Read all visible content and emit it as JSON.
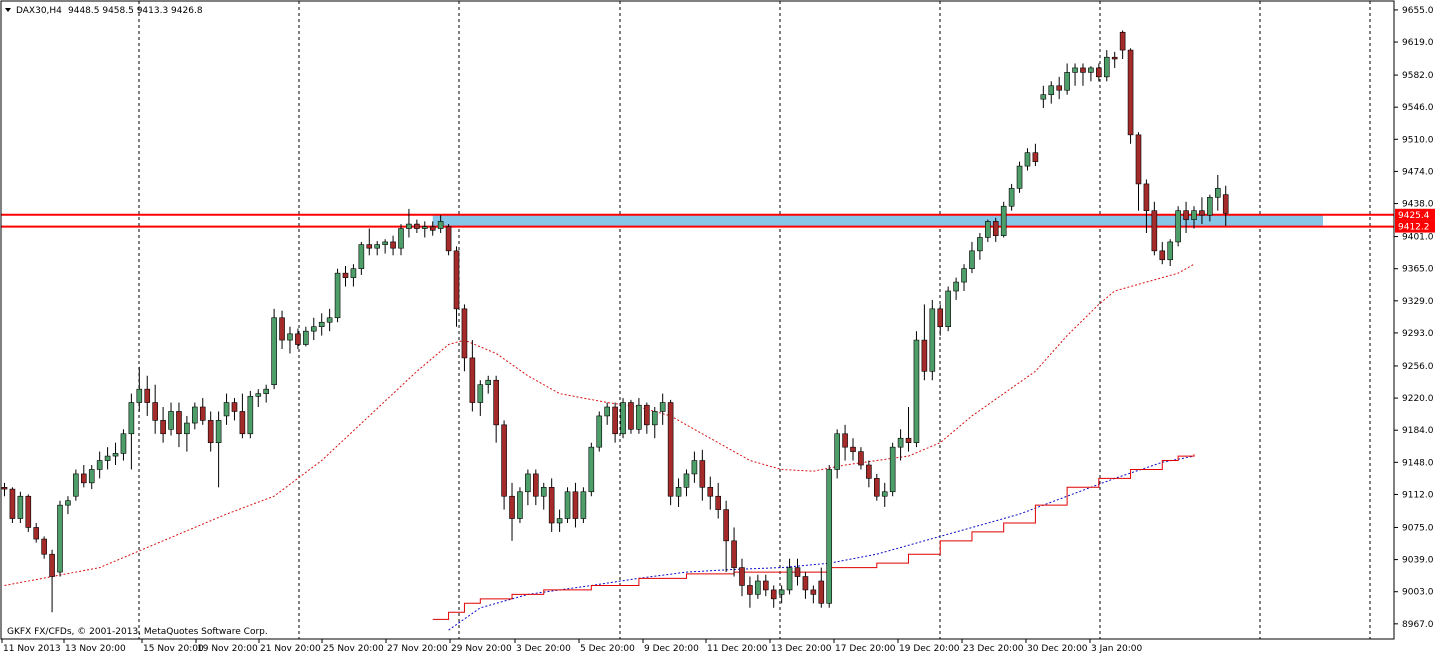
{
  "header": {
    "symbol_text": "DAX30,H4",
    "ohlc_text": "9448.5 9458.5 9413.3 9426.8"
  },
  "footer": {
    "copyright": "GKFX FX/CFDs, © 2001-2013, MetaQuotes Software Corp."
  },
  "colors": {
    "background": "#ffffff",
    "bull": "#4e9e6a",
    "bear": "#a52a2a",
    "grid": "#000000",
    "resistance_line": "#ff0000",
    "zone_fill": "#87c6e6",
    "ma_fast": "#d81010",
    "ma_slow": "#0a0ac8",
    "step": "#e00000"
  },
  "chart_data": {
    "type": "candlestick",
    "title": "DAX30,H4",
    "ylim": [
      8950,
      9665
    ],
    "y_ticks": [
      9655.0,
      9619.0,
      9582.0,
      9546.0,
      9510.0,
      9474.0,
      9438.0,
      9401.0,
      9365.0,
      9329.0,
      9293.0,
      9256.0,
      9220.0,
      9184.0,
      9148.0,
      9112.0,
      9075.0,
      9039.0,
      9003.0,
      8967.0
    ],
    "x_ticks": [
      "11 Nov 2013",
      "13 Nov 20:00",
      "15 Nov 20:00",
      "19 Nov 20:00",
      "21 Nov 20:00",
      "25 Nov 20:00",
      "27 Nov 20:00",
      "29 Nov 20:00",
      "3 Dec 20:00",
      "5 Dec 20:00",
      "9 Dec 20:00",
      "11 Dec 20:00",
      "13 Dec 20:00",
      "17 Dec 20:00",
      "19 Dec 20:00",
      "23 Dec 20:00",
      "30 Dec 20:00",
      "3 Jan 20:00"
    ],
    "price_labels": [
      {
        "value": 9425.4,
        "text": "9425.4"
      },
      {
        "value": 9412.2,
        "text": "9412.2"
      }
    ],
    "zone": {
      "low": 9412.2,
      "high": 9425.4
    },
    "candles": [
      [
        9120,
        9125,
        9110,
        9118
      ],
      [
        9118,
        9120,
        9080,
        9085
      ],
      [
        9085,
        9115,
        9080,
        9110
      ],
      [
        9110,
        9112,
        9070,
        9075
      ],
      [
        9075,
        9080,
        9058,
        9062
      ],
      [
        9062,
        9065,
        9040,
        9045
      ],
      [
        9045,
        9050,
        8980,
        9020
      ],
      [
        9025,
        9105,
        9020,
        9100
      ],
      [
        9100,
        9110,
        9090,
        9105
      ],
      [
        9110,
        9140,
        9105,
        9135
      ],
      [
        9135,
        9145,
        9120,
        9125
      ],
      [
        9125,
        9145,
        9118,
        9140
      ],
      [
        9140,
        9160,
        9130,
        9150
      ],
      [
        9150,
        9165,
        9140,
        9155
      ],
      [
        9155,
        9170,
        9145,
        9158
      ],
      [
        9158,
        9185,
        9150,
        9180
      ],
      [
        9180,
        9225,
        9140,
        9215
      ],
      [
        9215,
        9255,
        9205,
        9230
      ],
      [
        9230,
        9245,
        9200,
        9215
      ],
      [
        9215,
        9235,
        9180,
        9195
      ],
      [
        9195,
        9210,
        9170,
        9180
      ],
      [
        9185,
        9215,
        9178,
        9205
      ],
      [
        9205,
        9215,
        9165,
        9180
      ],
      [
        9180,
        9200,
        9160,
        9192
      ],
      [
        9192,
        9215,
        9185,
        9210
      ],
      [
        9210,
        9220,
        9190,
        9195
      ],
      [
        9195,
        9205,
        9160,
        9170
      ],
      [
        9170,
        9205,
        9120,
        9195
      ],
      [
        9200,
        9225,
        9190,
        9215
      ],
      [
        9215,
        9220,
        9195,
        9205
      ],
      [
        9205,
        9225,
        9175,
        9180
      ],
      [
        9180,
        9228,
        9175,
        9222
      ],
      [
        9222,
        9230,
        9210,
        9225
      ],
      [
        9225,
        9235,
        9215,
        9230
      ],
      [
        9235,
        9320,
        9230,
        9310
      ],
      [
        9310,
        9318,
        9275,
        9285
      ],
      [
        9285,
        9300,
        9270,
        9292
      ],
      [
        9292,
        9298,
        9275,
        9280
      ],
      [
        9280,
        9300,
        9278,
        9295
      ],
      [
        9295,
        9310,
        9285,
        9300
      ],
      [
        9300,
        9315,
        9290,
        9305
      ],
      [
        9305,
        9320,
        9295,
        9310
      ],
      [
        9310,
        9365,
        9305,
        9360
      ],
      [
        9360,
        9368,
        9345,
        9355
      ],
      [
        9355,
        9370,
        9345,
        9365
      ],
      [
        9365,
        9395,
        9358,
        9392
      ],
      [
        9392,
        9410,
        9380,
        9388
      ],
      [
        9388,
        9396,
        9380,
        9392
      ],
      [
        9392,
        9398,
        9382,
        9395
      ],
      [
        9395,
        9402,
        9380,
        9388
      ],
      [
        9388,
        9415,
        9380,
        9410
      ],
      [
        9410,
        9432,
        9400,
        9415
      ],
      [
        9415,
        9420,
        9405,
        9410
      ],
      [
        9410,
        9418,
        9400,
        9412
      ],
      [
        9412,
        9418,
        9402,
        9408
      ],
      [
        9410,
        9425,
        9405,
        9418
      ],
      [
        9412,
        9415,
        9380,
        9385
      ],
      [
        9385,
        9390,
        9300,
        9320
      ],
      [
        9320,
        9325,
        9250,
        9265
      ],
      [
        9265,
        9285,
        9205,
        9215
      ],
      [
        9215,
        9240,
        9200,
        9235
      ],
      [
        9235,
        9245,
        9225,
        9240
      ],
      [
        9240,
        9245,
        9170,
        9190
      ],
      [
        9190,
        9195,
        9095,
        9110
      ],
      [
        9110,
        9125,
        9060,
        9085
      ],
      [
        9085,
        9120,
        9080,
        9115
      ],
      [
        9115,
        9140,
        9100,
        9135
      ],
      [
        9135,
        9140,
        9100,
        9110
      ],
      [
        9110,
        9125,
        9095,
        9120
      ],
      [
        9120,
        9130,
        9070,
        9080
      ],
      [
        9080,
        9095,
        9070,
        9085
      ],
      [
        9085,
        9120,
        9080,
        9115
      ],
      [
        9115,
        9125,
        9075,
        9085
      ],
      [
        9085,
        9120,
        9080,
        9115
      ],
      [
        9115,
        9170,
        9110,
        9165
      ],
      [
        9165,
        9205,
        9160,
        9200
      ],
      [
        9200,
        9215,
        9190,
        9210
      ],
      [
        9210,
        9215,
        9170,
        9180
      ],
      [
        9180,
        9220,
        9175,
        9215
      ],
      [
        9215,
        9218,
        9180,
        9185
      ],
      [
        9185,
        9220,
        9180,
        9212
      ],
      [
        9212,
        9215,
        9180,
        9190
      ],
      [
        9190,
        9210,
        9175,
        9205
      ],
      [
        9205,
        9225,
        9190,
        9215
      ],
      [
        9215,
        9218,
        9100,
        9110
      ],
      [
        9110,
        9130,
        9098,
        9120
      ],
      [
        9120,
        9140,
        9110,
        9135
      ],
      [
        9135,
        9160,
        9125,
        9150
      ],
      [
        9150,
        9162,
        9105,
        9120
      ],
      [
        9120,
        9132,
        9095,
        9110
      ],
      [
        9110,
        9125,
        9085,
        9095
      ],
      [
        9095,
        9105,
        9025,
        9060
      ],
      [
        9060,
        9075,
        9020,
        9030
      ],
      [
        9030,
        9040,
        8998,
        9010
      ],
      [
        9010,
        9020,
        8985,
        9000
      ],
      [
        9000,
        9022,
        8995,
        9015
      ],
      [
        9015,
        9022,
        8998,
        9005
      ],
      [
        9005,
        9010,
        8985,
        8995
      ],
      [
        9000,
        9010,
        8990,
        9005
      ],
      [
        9005,
        9040,
        9000,
        9030
      ],
      [
        9030,
        9040,
        9010,
        9020
      ],
      [
        9020,
        9025,
        8995,
        9005
      ],
      [
        9005,
        9010,
        8990,
        9000
      ],
      [
        9015,
        9030,
        8985,
        8990
      ],
      [
        8990,
        9145,
        8985,
        9140
      ],
      [
        9140,
        9185,
        9130,
        9180
      ],
      [
        9180,
        9190,
        9150,
        9165
      ],
      [
        9165,
        9175,
        9150,
        9160
      ],
      [
        9160,
        9165,
        9140,
        9145
      ],
      [
        9145,
        9150,
        9120,
        9130
      ],
      [
        9130,
        9135,
        9105,
        9110
      ],
      [
        9110,
        9125,
        9098,
        9115
      ],
      [
        9115,
        9170,
        9110,
        9165
      ],
      [
        9165,
        9185,
        9150,
        9175
      ],
      [
        9175,
        9210,
        9160,
        9170
      ],
      [
        9170,
        9295,
        9165,
        9285
      ],
      [
        9285,
        9325,
        9240,
        9250
      ],
      [
        9250,
        9330,
        9240,
        9320
      ],
      [
        9320,
        9325,
        9290,
        9300
      ],
      [
        9300,
        9345,
        9295,
        9340
      ],
      [
        9340,
        9355,
        9330,
        9350
      ],
      [
        9350,
        9370,
        9340,
        9365
      ],
      [
        9365,
        9395,
        9360,
        9385
      ],
      [
        9385,
        9405,
        9375,
        9400
      ],
      [
        9400,
        9420,
        9395,
        9418
      ],
      [
        9418,
        9422,
        9395,
        9402
      ],
      [
        9402,
        9440,
        9400,
        9435
      ],
      [
        9435,
        9460,
        9430,
        9455
      ],
      [
        9455,
        9485,
        9450,
        9480
      ],
      [
        9480,
        9500,
        9475,
        9495
      ],
      [
        9495,
        9505,
        9480,
        9485
      ],
      [
        9555,
        9570,
        9545,
        9560
      ],
      [
        9560,
        9575,
        9550,
        9570
      ],
      [
        9570,
        9580,
        9555,
        9565
      ],
      [
        9565,
        9595,
        9560,
        9585
      ],
      [
        9585,
        9595,
        9570,
        9590
      ],
      [
        9590,
        9595,
        9570,
        9585
      ],
      [
        9585,
        9592,
        9575,
        9590
      ],
      [
        9590,
        9595,
        9575,
        9580
      ],
      [
        9580,
        9610,
        9575,
        9602
      ],
      [
        9602,
        9608,
        9590,
        9600
      ],
      [
        9630,
        9632,
        9600,
        9610
      ],
      [
        9610,
        9612,
        9505,
        9515
      ],
      [
        9515,
        9518,
        9430,
        9460
      ],
      [
        9460,
        9465,
        9405,
        9430
      ],
      [
        9430,
        9440,
        9380,
        9385
      ],
      [
        9385,
        9395,
        9370,
        9375
      ],
      [
        9375,
        9398,
        9368,
        9395
      ],
      [
        9395,
        9435,
        9390,
        9430
      ],
      [
        9430,
        9440,
        9405,
        9420
      ],
      [
        9420,
        9435,
        9410,
        9430
      ],
      [
        9430,
        9445,
        9415,
        9425
      ],
      [
        9425,
        9448,
        9418,
        9445
      ],
      [
        9445,
        9470,
        9430,
        9455
      ],
      [
        9448,
        9458,
        9413,
        9427
      ]
    ],
    "ma_fast": [
      [
        0,
        9010
      ],
      [
        12,
        9030
      ],
      [
        20,
        9060
      ],
      [
        28,
        9090
      ],
      [
        34,
        9110
      ],
      [
        40,
        9150
      ],
      [
        46,
        9200
      ],
      [
        52,
        9250
      ],
      [
        56,
        9280
      ],
      [
        58,
        9285
      ],
      [
        62,
        9270
      ],
      [
        66,
        9245
      ],
      [
        70,
        9225
      ],
      [
        76,
        9215
      ],
      [
        80,
        9210
      ],
      [
        84,
        9200
      ],
      [
        88,
        9180
      ],
      [
        90,
        9170
      ],
      [
        94,
        9150
      ],
      [
        98,
        9140
      ],
      [
        102,
        9138
      ],
      [
        106,
        9145
      ],
      [
        110,
        9150
      ],
      [
        114,
        9155
      ],
      [
        118,
        9170
      ],
      [
        122,
        9200
      ],
      [
        126,
        9225
      ],
      [
        130,
        9250
      ],
      [
        134,
        9290
      ],
      [
        138,
        9325
      ],
      [
        140,
        9340
      ],
      [
        144,
        9350
      ],
      [
        148,
        9360
      ],
      [
        150,
        9370
      ]
    ],
    "ma_slow": [
      [
        56,
        8960
      ],
      [
        60,
        8985
      ],
      [
        66,
        9000
      ],
      [
        74,
        9010
      ],
      [
        80,
        9018
      ],
      [
        86,
        9025
      ],
      [
        92,
        9028
      ],
      [
        98,
        9030
      ],
      [
        104,
        9035
      ],
      [
        110,
        9045
      ],
      [
        116,
        9060
      ],
      [
        122,
        9075
      ],
      [
        128,
        9090
      ],
      [
        134,
        9110
      ],
      [
        140,
        9130
      ],
      [
        146,
        9148
      ],
      [
        150,
        9155
      ]
    ],
    "step_line": [
      [
        54,
        8972
      ],
      [
        56,
        8980
      ],
      [
        58,
        8990
      ],
      [
        60,
        8995
      ],
      [
        64,
        9000
      ],
      [
        68,
        9005
      ],
      [
        74,
        9010
      ],
      [
        80,
        9018
      ],
      [
        86,
        9023
      ],
      [
        92,
        9025
      ],
      [
        98,
        9025
      ],
      [
        104,
        9030
      ],
      [
        110,
        9035
      ],
      [
        114,
        9045
      ],
      [
        118,
        9060
      ],
      [
        122,
        9070
      ],
      [
        126,
        9080
      ],
      [
        130,
        9100
      ],
      [
        134,
        9120
      ],
      [
        138,
        9130
      ],
      [
        142,
        9140
      ],
      [
        146,
        9150
      ],
      [
        148,
        9155
      ],
      [
        150,
        9157
      ]
    ]
  }
}
